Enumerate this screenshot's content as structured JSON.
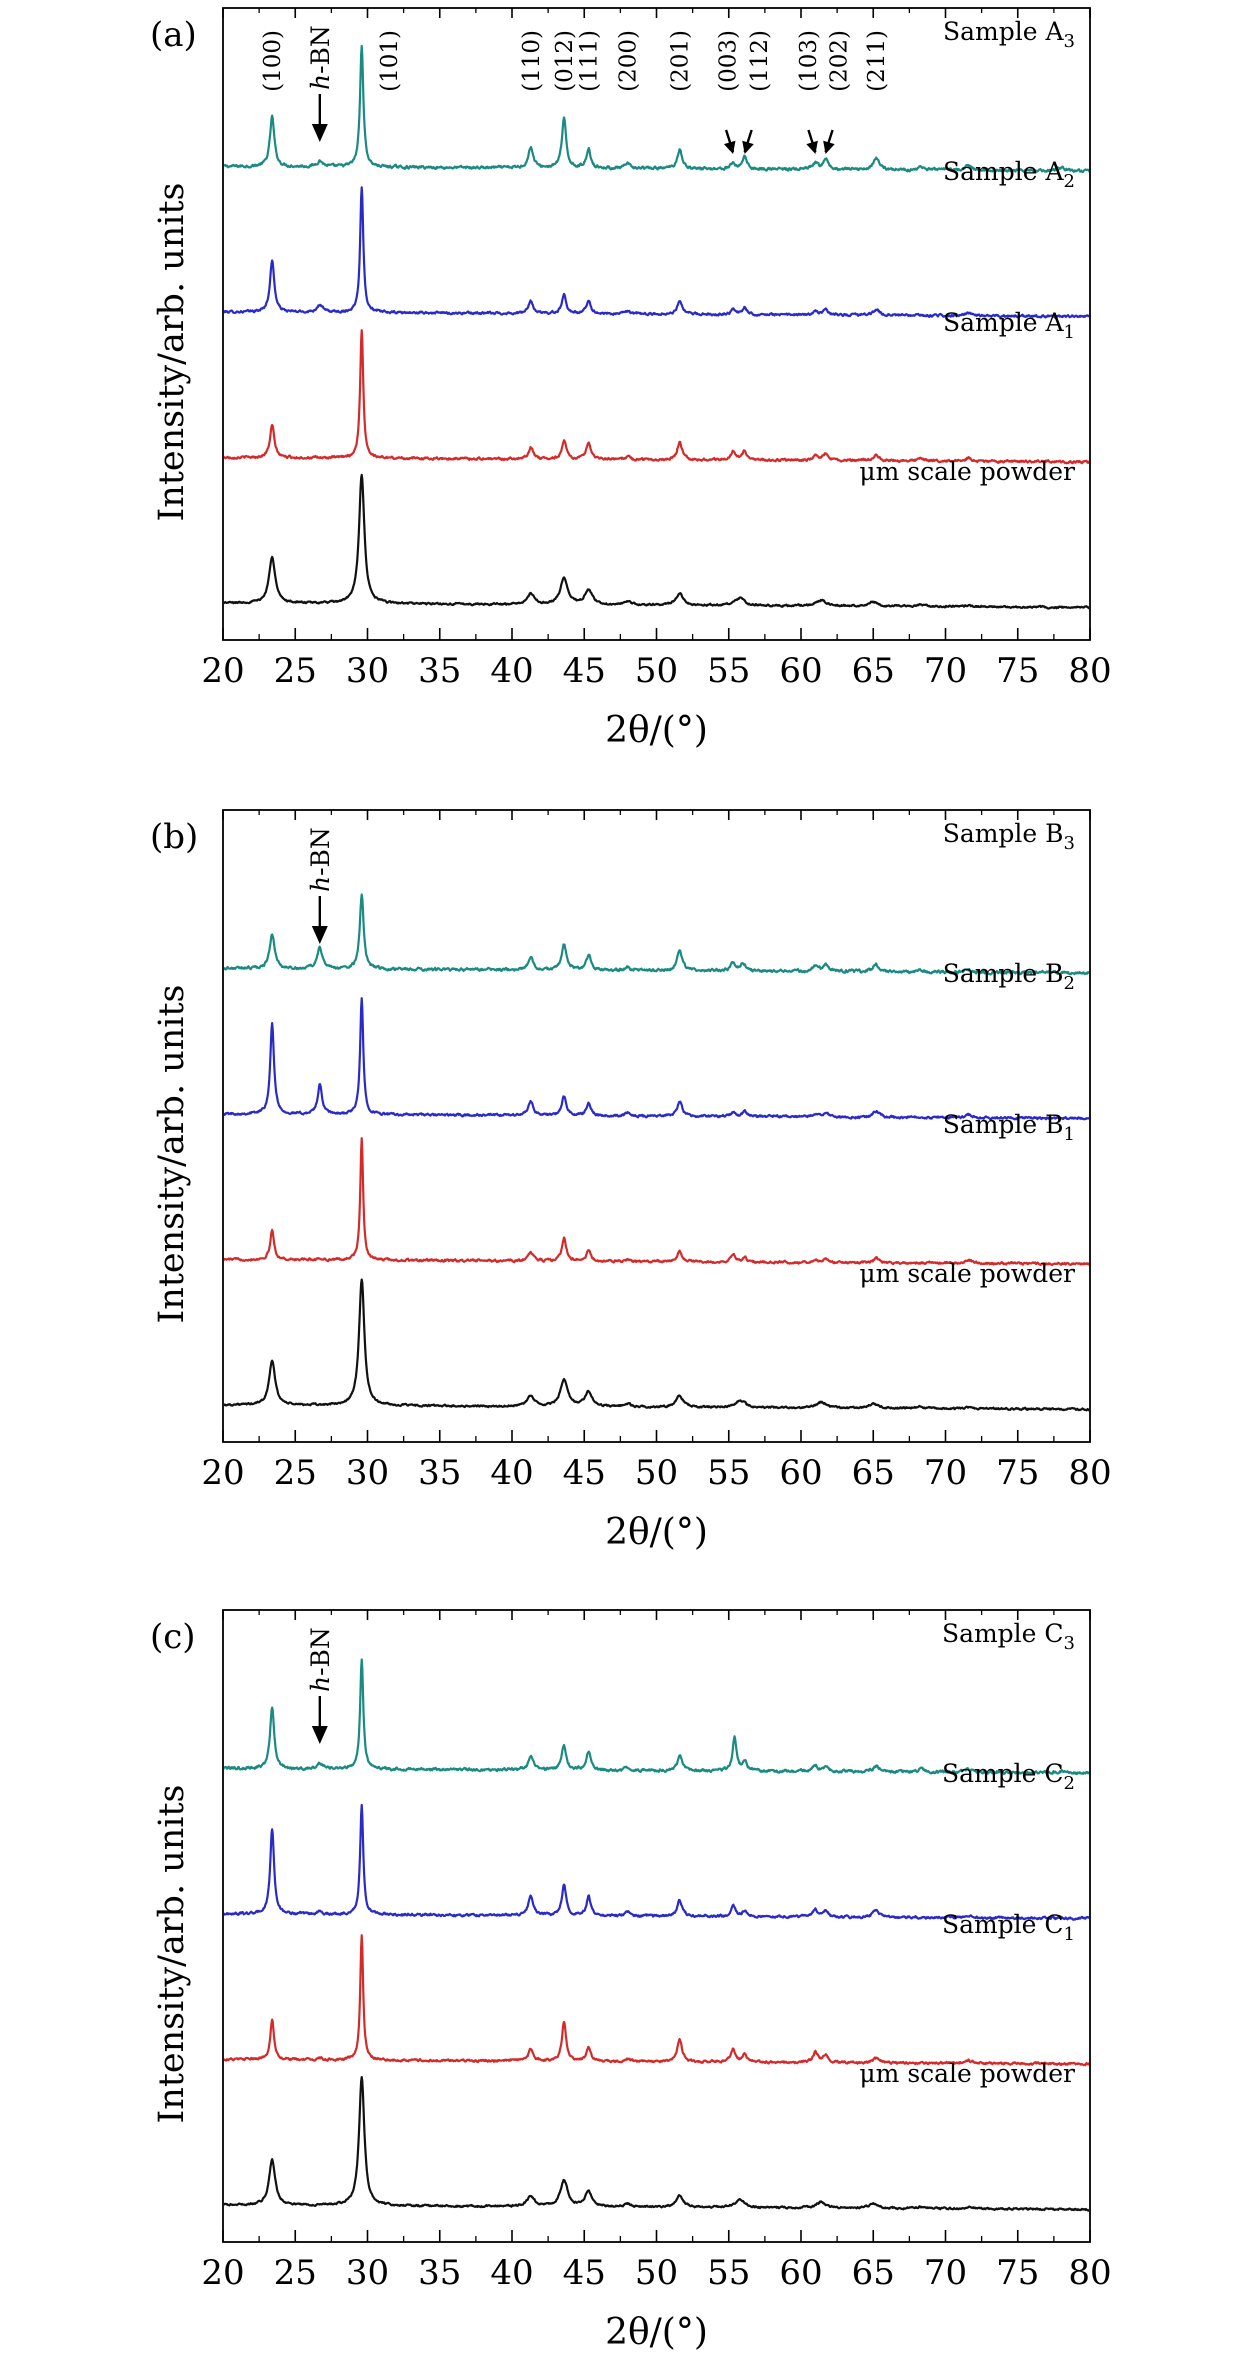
{
  "chart_data": [
    {
      "type": "line",
      "panel_label": "(a)",
      "xlabel": "2θ/(°)",
      "ylabel": "Intensity/arb. units",
      "xlim": [
        20,
        80
      ],
      "xticks": [
        "20",
        "25",
        "30",
        "35",
        "40",
        "45",
        "50",
        "55",
        "60",
        "65",
        "70",
        "75",
        "80"
      ],
      "series": [
        {
          "name": "Sample A",
          "sub": "3",
          "color": "#1a8a82",
          "offset": 2.97,
          "noise": 0.006,
          "peaks": [
            [
              23.4,
              0.34,
              0.18
            ],
            [
              26.7,
              0.04,
              0.25
            ],
            [
              29.6,
              0.82,
              0.14
            ],
            [
              41.3,
              0.14,
              0.2
            ],
            [
              43.6,
              0.33,
              0.18
            ],
            [
              45.3,
              0.13,
              0.18
            ],
            [
              48.0,
              0.03,
              0.2
            ],
            [
              51.6,
              0.13,
              0.2
            ],
            [
              55.3,
              0.04,
              0.18
            ],
            [
              56.1,
              0.09,
              0.18
            ],
            [
              61.0,
              0.04,
              0.2
            ],
            [
              61.7,
              0.07,
              0.2
            ],
            [
              65.2,
              0.08,
              0.25
            ],
            [
              68.3,
              0.02,
              0.25
            ],
            [
              71.6,
              0.03,
              0.25
            ],
            [
              78.0,
              0.02,
              0.3
            ]
          ]
        },
        {
          "name": "Sample A",
          "sub": "2",
          "color": "#2a2ac8",
          "offset": 1.98,
          "noise": 0.005,
          "peaks": [
            [
              23.4,
              0.35,
              0.18
            ],
            [
              26.7,
              0.05,
              0.25
            ],
            [
              29.6,
              0.86,
              0.13
            ],
            [
              41.3,
              0.08,
              0.2
            ],
            [
              43.6,
              0.13,
              0.18
            ],
            [
              45.3,
              0.09,
              0.18
            ],
            [
              48.0,
              0.02,
              0.2
            ],
            [
              51.6,
              0.09,
              0.2
            ],
            [
              55.3,
              0.03,
              0.18
            ],
            [
              56.1,
              0.05,
              0.18
            ],
            [
              61.0,
              0.02,
              0.2
            ],
            [
              61.7,
              0.04,
              0.2
            ],
            [
              65.2,
              0.04,
              0.25
            ],
            [
              71.6,
              0.02,
              0.25
            ]
          ]
        },
        {
          "name": "Sample A",
          "sub": "1",
          "color": "#d42a2a",
          "offset": 0.99,
          "noise": 0.005,
          "peaks": [
            [
              23.4,
              0.22,
              0.18
            ],
            [
              29.6,
              0.87,
              0.13
            ],
            [
              41.3,
              0.08,
              0.2
            ],
            [
              43.6,
              0.13,
              0.18
            ],
            [
              45.3,
              0.11,
              0.18
            ],
            [
              48.0,
              0.02,
              0.2
            ],
            [
              51.6,
              0.12,
              0.2
            ],
            [
              55.3,
              0.06,
              0.18
            ],
            [
              56.1,
              0.06,
              0.18
            ],
            [
              61.0,
              0.03,
              0.2
            ],
            [
              61.7,
              0.05,
              0.2
            ],
            [
              65.2,
              0.04,
              0.25
            ],
            [
              68.3,
              0.02,
              0.25
            ],
            [
              71.6,
              0.02,
              0.25
            ]
          ]
        },
        {
          "name": "μm scale powder",
          "sub": "",
          "color": "#111111",
          "offset": 0.0,
          "noise": 0.004,
          "peaks": [
            [
              23.4,
              0.32,
              0.25
            ],
            [
              29.6,
              0.88,
              0.22
            ],
            [
              41.3,
              0.07,
              0.3
            ],
            [
              43.6,
              0.18,
              0.3
            ],
            [
              45.3,
              0.1,
              0.3
            ],
            [
              48.0,
              0.02,
              0.3
            ],
            [
              51.6,
              0.08,
              0.3
            ],
            [
              55.8,
              0.05,
              0.4
            ],
            [
              61.4,
              0.04,
              0.4
            ],
            [
              65.0,
              0.03,
              0.4
            ],
            [
              68.2,
              0.01,
              0.4
            ],
            [
              71.6,
              0.01,
              0.4
            ]
          ]
        }
      ],
      "peak_labels": [
        {
          "text": "(100)",
          "x": 23.4
        },
        {
          "text": "(101)",
          "x": 31.5
        },
        {
          "text": "(110)",
          "x": 41.3
        },
        {
          "text": "(012)",
          "x": 43.6
        },
        {
          "text": "(111)",
          "x": 45.3
        },
        {
          "text": "(200)",
          "x": 48.0
        },
        {
          "text": "(201)",
          "x": 51.6
        },
        {
          "text": "(003)",
          "x": 54.9
        },
        {
          "text": "(112)",
          "x": 57.1
        },
        {
          "text": "(103)",
          "x": 60.5
        },
        {
          "text": "(202)",
          "x": 62.6
        },
        {
          "text": "(211)",
          "x": 65.2
        }
      ],
      "arrows": [
        {
          "x": 55.3
        },
        {
          "x": 56.1
        },
        {
          "x": 61.0
        },
        {
          "x": 61.7
        }
      ],
      "hbn": {
        "text": "h",
        "suffix": "-BN",
        "x": 26.7
      }
    },
    {
      "type": "line",
      "panel_label": "(b)",
      "xlabel": "2θ/(°)",
      "ylabel": "Intensity/arb. units",
      "xlim": [
        20,
        80
      ],
      "xticks": [
        "20",
        "25",
        "30",
        "35",
        "40",
        "45",
        "50",
        "55",
        "60",
        "65",
        "70",
        "75",
        "80"
      ],
      "series": [
        {
          "name": "Sample B",
          "sub": "3",
          "color": "#1a8a82",
          "offset": 2.97,
          "noise": 0.006,
          "peaks": [
            [
              23.4,
              0.24,
              0.2
            ],
            [
              26.7,
              0.15,
              0.2
            ],
            [
              29.6,
              0.5,
              0.16
            ],
            [
              41.3,
              0.08,
              0.2
            ],
            [
              43.6,
              0.17,
              0.2
            ],
            [
              45.3,
              0.1,
              0.2
            ],
            [
              48.0,
              0.02,
              0.2
            ],
            [
              51.6,
              0.13,
              0.22
            ],
            [
              55.3,
              0.06,
              0.2
            ],
            [
              56.0,
              0.05,
              0.2
            ],
            [
              61.0,
              0.04,
              0.22
            ],
            [
              61.7,
              0.04,
              0.22
            ],
            [
              65.2,
              0.05,
              0.25
            ],
            [
              68.3,
              0.01,
              0.25
            ],
            [
              71.6,
              0.02,
              0.25
            ]
          ]
        },
        {
          "name": "Sample B",
          "sub": "2",
          "color": "#2a2ac8",
          "offset": 1.98,
          "noise": 0.005,
          "peaks": [
            [
              23.4,
              0.61,
              0.16
            ],
            [
              26.7,
              0.2,
              0.18
            ],
            [
              29.6,
              0.79,
              0.13
            ],
            [
              41.3,
              0.1,
              0.2
            ],
            [
              43.6,
              0.13,
              0.18
            ],
            [
              45.3,
              0.09,
              0.18
            ],
            [
              48.0,
              0.02,
              0.2
            ],
            [
              51.6,
              0.1,
              0.2
            ],
            [
              55.3,
              0.03,
              0.18
            ],
            [
              56.1,
              0.04,
              0.18
            ],
            [
              61.0,
              0.02,
              0.2
            ],
            [
              61.7,
              0.03,
              0.2
            ],
            [
              65.2,
              0.04,
              0.25
            ],
            [
              71.6,
              0.02,
              0.25
            ]
          ]
        },
        {
          "name": "Sample B",
          "sub": "1",
          "color": "#d42a2a",
          "offset": 0.99,
          "noise": 0.005,
          "peaks": [
            [
              23.4,
              0.2,
              0.16
            ],
            [
              26.7,
              0.01,
              0.2
            ],
            [
              29.6,
              0.82,
              0.12
            ],
            [
              41.3,
              0.06,
              0.2
            ],
            [
              43.6,
              0.16,
              0.18
            ],
            [
              45.3,
              0.07,
              0.18
            ],
            [
              48.0,
              0.01,
              0.2
            ],
            [
              51.6,
              0.07,
              0.2
            ],
            [
              55.3,
              0.05,
              0.18
            ],
            [
              56.1,
              0.03,
              0.18
            ],
            [
              61.0,
              0.02,
              0.2
            ],
            [
              61.7,
              0.03,
              0.2
            ],
            [
              65.2,
              0.03,
              0.25
            ],
            [
              71.6,
              0.02,
              0.25
            ]
          ]
        },
        {
          "name": "μm scale powder",
          "sub": "",
          "color": "#111111",
          "offset": 0.0,
          "noise": 0.004,
          "peaks": [
            [
              23.4,
              0.3,
              0.25
            ],
            [
              29.6,
              0.86,
              0.22
            ],
            [
              41.3,
              0.07,
              0.3
            ],
            [
              43.6,
              0.18,
              0.3
            ],
            [
              45.3,
              0.1,
              0.3
            ],
            [
              48.0,
              0.02,
              0.3
            ],
            [
              51.6,
              0.08,
              0.3
            ],
            [
              55.8,
              0.05,
              0.4
            ],
            [
              61.4,
              0.04,
              0.4
            ],
            [
              65.0,
              0.03,
              0.4
            ],
            [
              68.2,
              0.01,
              0.4
            ],
            [
              71.6,
              0.01,
              0.4
            ]
          ]
        }
      ],
      "peak_labels": [],
      "arrows": [],
      "hbn": {
        "text": "h",
        "suffix": "-BN",
        "x": 26.7
      }
    },
    {
      "type": "line",
      "panel_label": "(c)",
      "xlabel": "2θ/(°)",
      "ylabel": "Intensity/arb. units",
      "xlim": [
        20,
        80
      ],
      "xticks": [
        "20",
        "25",
        "30",
        "35",
        "40",
        "45",
        "50",
        "55",
        "60",
        "65",
        "70",
        "75",
        "80"
      ],
      "series": [
        {
          "name": "Sample C",
          "sub": "3",
          "color": "#1a8a82",
          "offset": 2.97,
          "noise": 0.006,
          "peaks": [
            [
              23.4,
              0.42,
              0.17
            ],
            [
              26.7,
              0.04,
              0.22
            ],
            [
              29.6,
              0.75,
              0.13
            ],
            [
              41.3,
              0.09,
              0.2
            ],
            [
              43.6,
              0.17,
              0.18
            ],
            [
              45.3,
              0.13,
              0.18
            ],
            [
              48.0,
              0.02,
              0.2
            ],
            [
              51.6,
              0.1,
              0.2
            ],
            [
              55.4,
              0.23,
              0.16
            ],
            [
              56.1,
              0.07,
              0.18
            ],
            [
              61.0,
              0.04,
              0.2
            ],
            [
              61.7,
              0.03,
              0.2
            ],
            [
              65.2,
              0.04,
              0.25
            ],
            [
              68.3,
              0.02,
              0.25
            ],
            [
              71.6,
              0.02,
              0.25
            ],
            [
              78.0,
              0.01,
              0.3
            ]
          ]
        },
        {
          "name": "Sample C",
          "sub": "2",
          "color": "#2a2ac8",
          "offset": 1.98,
          "noise": 0.005,
          "peaks": [
            [
              23.4,
              0.58,
              0.16
            ],
            [
              26.7,
              0.02,
              0.22
            ],
            [
              29.6,
              0.74,
              0.13
            ],
            [
              41.3,
              0.14,
              0.2
            ],
            [
              43.6,
              0.21,
              0.18
            ],
            [
              45.3,
              0.13,
              0.18
            ],
            [
              48.0,
              0.03,
              0.2
            ],
            [
              51.6,
              0.11,
              0.2
            ],
            [
              55.3,
              0.07,
              0.18
            ],
            [
              56.1,
              0.04,
              0.18
            ],
            [
              61.0,
              0.05,
              0.2
            ],
            [
              61.7,
              0.04,
              0.2
            ],
            [
              65.2,
              0.05,
              0.25
            ],
            [
              71.6,
              0.02,
              0.25
            ]
          ]
        },
        {
          "name": "Sample C",
          "sub": "1",
          "color": "#d42a2a",
          "offset": 0.99,
          "noise": 0.005,
          "peaks": [
            [
              23.4,
              0.27,
              0.16
            ],
            [
              26.7,
              0.01,
              0.2
            ],
            [
              29.6,
              0.85,
              0.12
            ],
            [
              41.3,
              0.08,
              0.2
            ],
            [
              43.6,
              0.27,
              0.17
            ],
            [
              45.3,
              0.09,
              0.18
            ],
            [
              48.0,
              0.02,
              0.2
            ],
            [
              51.6,
              0.15,
              0.2
            ],
            [
              55.3,
              0.09,
              0.18
            ],
            [
              56.1,
              0.05,
              0.18
            ],
            [
              61.0,
              0.07,
              0.2
            ],
            [
              61.7,
              0.05,
              0.2
            ],
            [
              65.2,
              0.03,
              0.25
            ],
            [
              71.6,
              0.02,
              0.25
            ]
          ]
        },
        {
          "name": "μm scale powder",
          "sub": "",
          "color": "#111111",
          "offset": 0.0,
          "noise": 0.004,
          "peaks": [
            [
              23.4,
              0.31,
              0.25
            ],
            [
              29.6,
              0.87,
              0.22
            ],
            [
              41.3,
              0.07,
              0.3
            ],
            [
              43.6,
              0.18,
              0.3
            ],
            [
              45.3,
              0.1,
              0.3
            ],
            [
              48.0,
              0.02,
              0.3
            ],
            [
              51.6,
              0.08,
              0.3
            ],
            [
              55.8,
              0.05,
              0.4
            ],
            [
              61.4,
              0.04,
              0.4
            ],
            [
              65.0,
              0.03,
              0.4
            ],
            [
              68.2,
              0.01,
              0.4
            ],
            [
              71.6,
              0.01,
              0.4
            ]
          ]
        }
      ],
      "peak_labels": [],
      "arrows": [],
      "hbn": {
        "text": "h",
        "suffix": "-BN",
        "x": 26.7
      }
    }
  ]
}
